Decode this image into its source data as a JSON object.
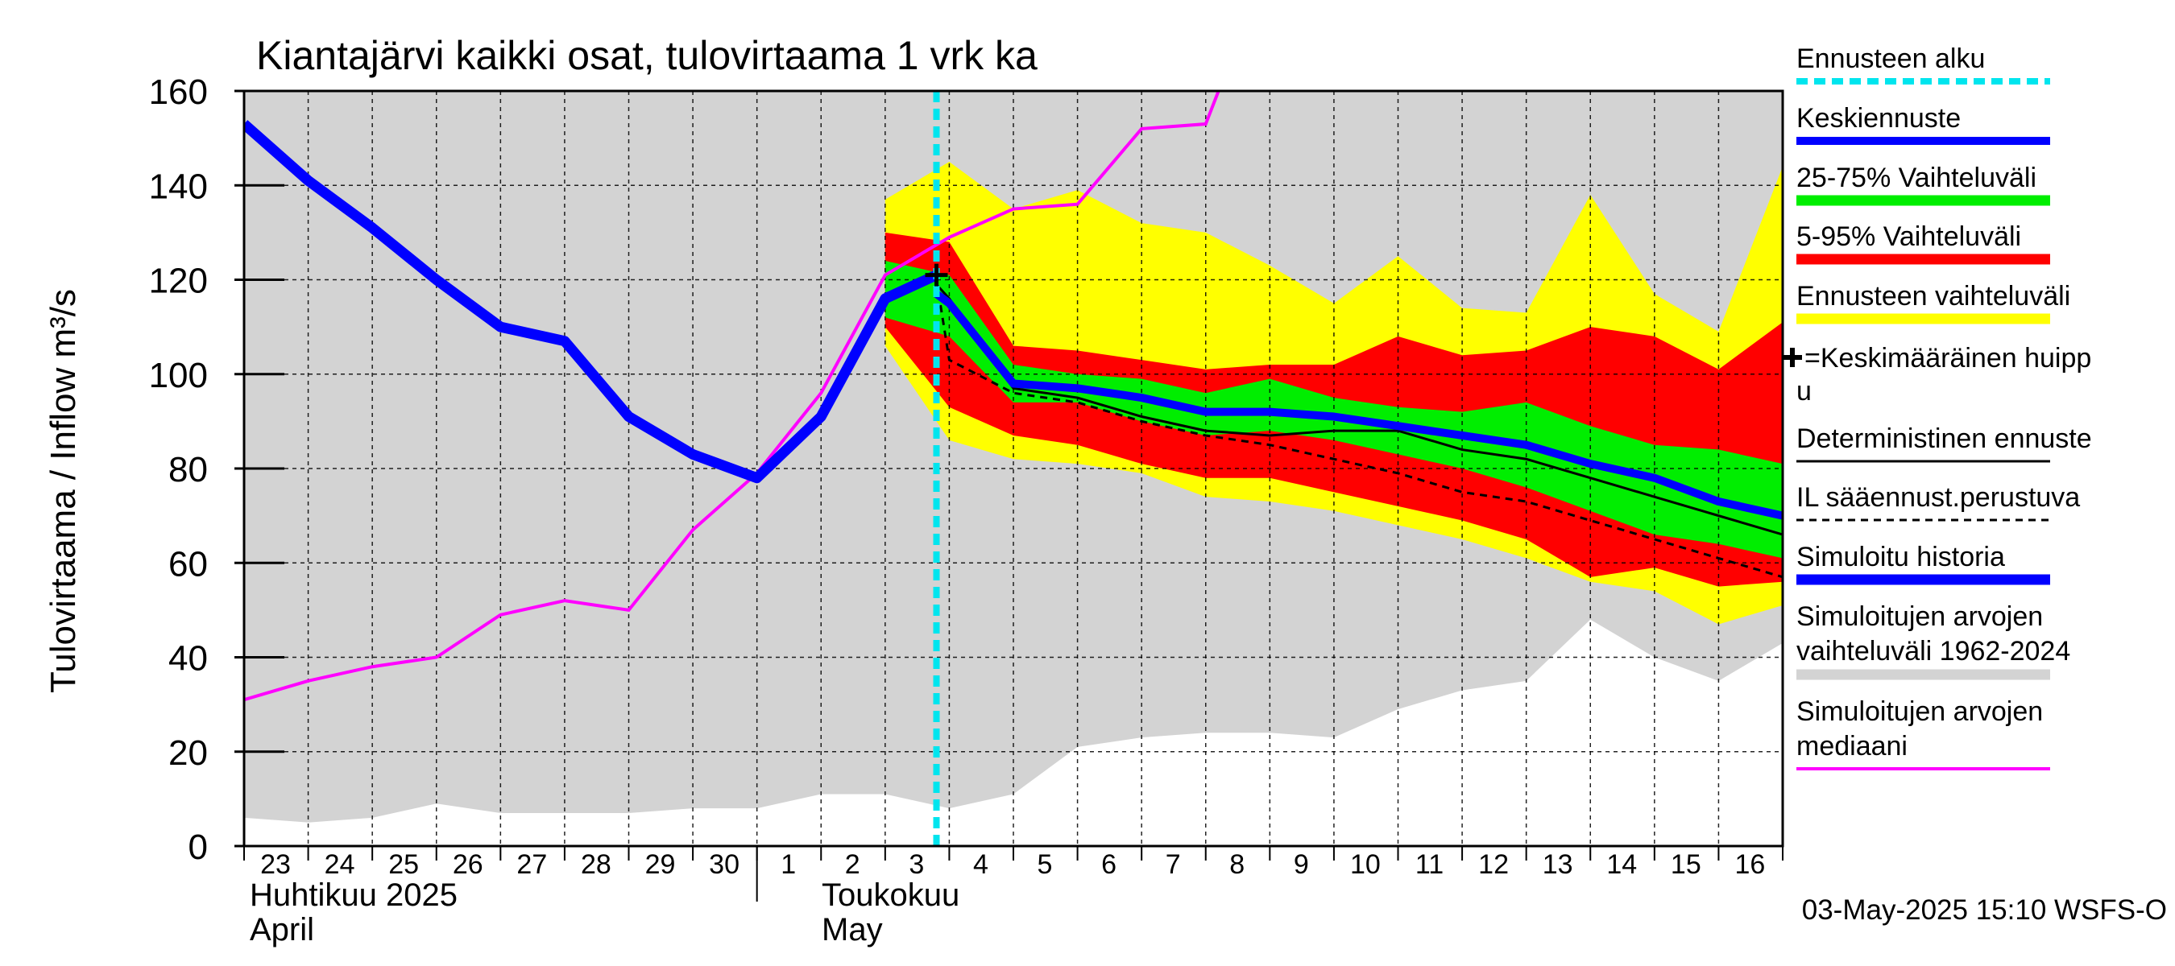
{
  "chart_data": {
    "type": "area",
    "title": "Kiantajärvi kaikki osat, tulovirtaama 1 vrk ka",
    "ylabel": "Tulovirtaama / Inflow    m³/s",
    "ylim": [
      0,
      160
    ],
    "yticks": [
      0,
      20,
      40,
      60,
      80,
      100,
      120,
      140,
      160
    ],
    "grid": true,
    "legend_position": "right",
    "day_labels": [
      "23",
      "24",
      "25",
      "26",
      "27",
      "28",
      "29",
      "30",
      "1",
      "2",
      "3",
      "4",
      "5",
      "6",
      "7",
      "8",
      "9",
      "10",
      "11",
      "12",
      "13",
      "14",
      "15",
      "16"
    ],
    "month_labels": {
      "april_fi": "Huhtikuu  2025",
      "april_en": "April",
      "may_fi": "Toukokuu",
      "may_en": "May"
    },
    "footer": "03-May-2025 15:10 WSFS-O",
    "forecast_start_day": 10.8,
    "colors": {
      "forecast_start": "#00e5ee",
      "mean_forecast": "#0000ff",
      "band_25_75": "#00ee00",
      "band_5_95": "#ff0000",
      "band_full": "#ffff00",
      "history_band": "#d3d3d3",
      "median": "#ff00ff",
      "deterministic": "#000000",
      "il_forecast": "#000000",
      "simulated_history": "#0000ff"
    },
    "legend": {
      "forecast_start": "Ennusteen alku",
      "mean_forecast": "Keskiennuste",
      "band_25_75": "25-75% Vaihteluväli",
      "band_5_95": "5-95% Vaihteluväli",
      "band_full": "Ennusteen vaihteluväli",
      "peak_line1": "=Keskimääräinen huipp",
      "peak_line2": "u",
      "deterministic": "Deterministinen ennuste",
      "il_forecast": "IL sääennust.perustuva",
      "simulated_history": "Simuloitu historia",
      "history_band_line1": "Simuloitujen arvojen",
      "history_band_line2": "vaihteluväli 1962-2024",
      "median_line1": "Simuloitujen arvojen",
      "median_line2": "mediaani"
    },
    "history_band": {
      "x": [
        0,
        1,
        2,
        3,
        4,
        5,
        6,
        7,
        8,
        9,
        10,
        11,
        12,
        13,
        14,
        15,
        16,
        17,
        18,
        19,
        20,
        21,
        22,
        23,
        24
      ],
      "lower": [
        6,
        5,
        6,
        9,
        7,
        7,
        7,
        8,
        8,
        11,
        11,
        8,
        11,
        21,
        23,
        24,
        24,
        23,
        29,
        33,
        35,
        48,
        40,
        35,
        43
      ],
      "upper": [
        160,
        160,
        160,
        160,
        160,
        160,
        160,
        160,
        160,
        160,
        160,
        160,
        160,
        160,
        160,
        160,
        160,
        160,
        160,
        160,
        160,
        160,
        160,
        160,
        160
      ]
    },
    "simulated_history": {
      "x": [
        0,
        1,
        2,
        3,
        4,
        5,
        6,
        7,
        8,
        9,
        10,
        10.8
      ],
      "y": [
        153,
        141,
        131,
        120,
        110,
        107,
        91,
        83,
        78,
        91,
        116,
        121
      ]
    },
    "median": {
      "x": [
        0,
        1,
        2,
        3,
        4,
        5,
        6,
        7,
        8,
        9,
        10,
        11,
        12,
        13,
        14,
        15,
        15.2
      ],
      "y": [
        31,
        35,
        38,
        40,
        49,
        52,
        50,
        67,
        79,
        96,
        121,
        129,
        135,
        136,
        152,
        153,
        160
      ]
    },
    "band_full": {
      "x": [
        10,
        11,
        12,
        13,
        14,
        15,
        16,
        17,
        18,
        19,
        20,
        21,
        22,
        23,
        24
      ],
      "lower": [
        106,
        86,
        82,
        81,
        79,
        74,
        73,
        71,
        68,
        65,
        61,
        56,
        54,
        47,
        51
      ],
      "upper": [
        137,
        145,
        135,
        139,
        132,
        130,
        123,
        115,
        125,
        114,
        113,
        138,
        117,
        109,
        144
      ]
    },
    "band_5_95": {
      "x": [
        10,
        11,
        12,
        13,
        14,
        15,
        16,
        17,
        18,
        19,
        20,
        21,
        22,
        23,
        24
      ],
      "lower": [
        110,
        93,
        87,
        85,
        81,
        78,
        78,
        75,
        72,
        69,
        65,
        57,
        59,
        55,
        56
      ],
      "upper": [
        130,
        128,
        106,
        105,
        103,
        101,
        102,
        102,
        108,
        104,
        105,
        110,
        108,
        101,
        111
      ]
    },
    "band_25_75": {
      "x": [
        10,
        11,
        12,
        13,
        14,
        15,
        16,
        17,
        18,
        19,
        20,
        21,
        22,
        23,
        24
      ],
      "lower": [
        112,
        108,
        94,
        94,
        90,
        87,
        88,
        86,
        83,
        80,
        76,
        71,
        66,
        64,
        61
      ],
      "upper": [
        124,
        121,
        102,
        100,
        99,
        96,
        99,
        95,
        93,
        92,
        94,
        89,
        85,
        84,
        81
      ]
    },
    "mean_forecast": {
      "x": [
        10.8,
        11,
        12,
        13,
        14,
        15,
        16,
        17,
        18,
        19,
        20,
        21,
        22,
        23,
        24
      ],
      "y": [
        117,
        115,
        98,
        97,
        95,
        92,
        92,
        91,
        89,
        87,
        85,
        81,
        78,
        73,
        70
      ]
    },
    "deterministic": {
      "x": [
        10.8,
        11,
        12,
        13,
        14,
        15,
        16,
        17,
        18,
        19,
        20,
        21,
        22,
        23,
        24
      ],
      "y": [
        119,
        116,
        97,
        95,
        91,
        88,
        87,
        88,
        88,
        84,
        82,
        78,
        74,
        70,
        66
      ]
    },
    "il_forecast": {
      "x": [
        10.8,
        11,
        12,
        13,
        14,
        15,
        16,
        17,
        18,
        19,
        20,
        21,
        22,
        23,
        24
      ],
      "y": [
        120,
        103,
        96,
        94,
        90,
        87,
        85,
        82,
        79,
        75,
        73,
        69,
        65,
        61,
        57
      ]
    },
    "mean_peak": {
      "x": 10.8,
      "y": 121
    }
  }
}
